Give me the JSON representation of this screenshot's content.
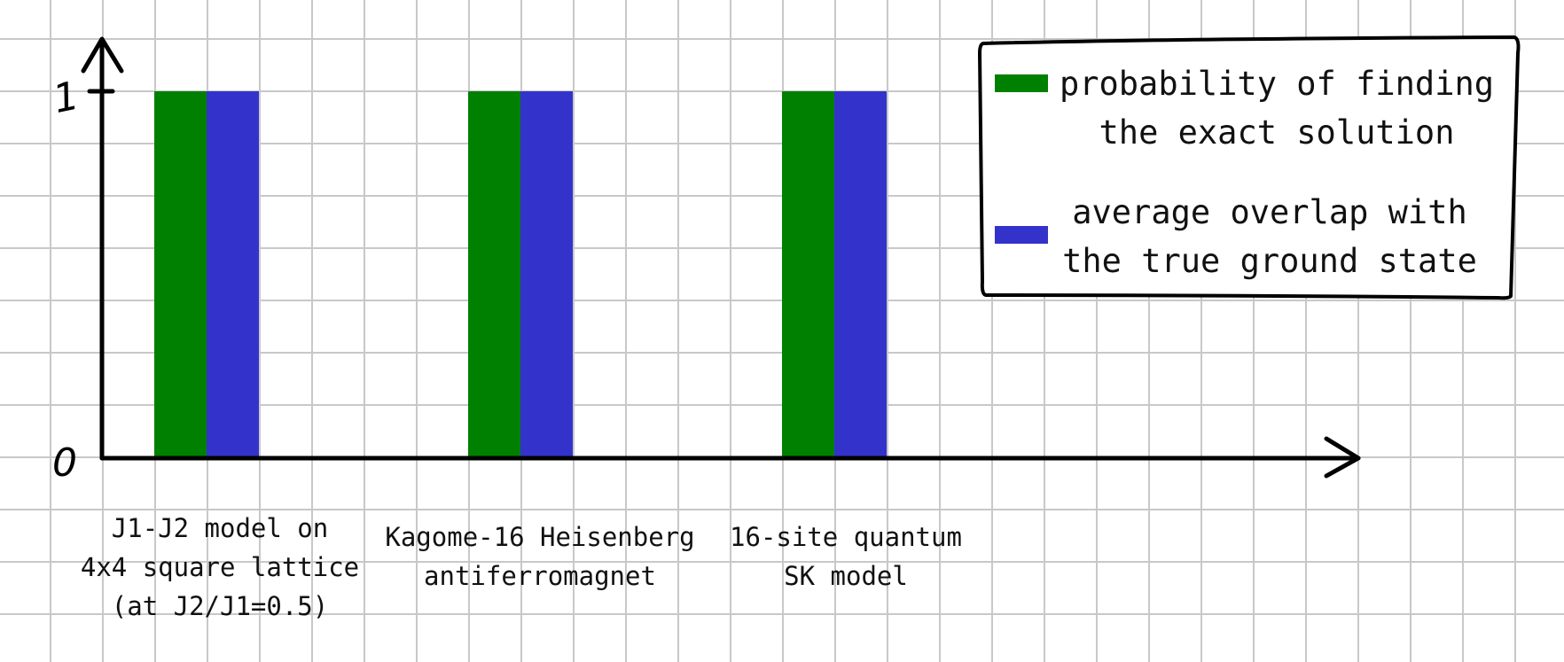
{
  "chart_data": {
    "type": "bar",
    "categories": [
      [
        "J1-J2 model on",
        "4x4 square lattice",
        "(at J2/J1=0.5)"
      ],
      [
        "Kagome-16 Heisenberg",
        "antiferromagnet"
      ],
      [
        "16-site quantum",
        "SK model"
      ]
    ],
    "series": [
      {
        "name": [
          "probability of finding",
          "the exact solution"
        ],
        "values": [
          1,
          1,
          1
        ],
        "color": "#008000"
      },
      {
        "name": [
          "average overlap with",
          "the true ground state"
        ],
        "values": [
          1,
          1,
          1
        ],
        "color": "#3333cc"
      }
    ],
    "ylim": [
      0,
      1
    ],
    "yticks": [
      {
        "value": 0,
        "label": "0"
      },
      {
        "value": 1,
        "label": "1"
      }
    ],
    "grid": true,
    "legend_position": "top-right",
    "colors": {
      "grid": "#c8c8c8",
      "axis": "#000000"
    }
  }
}
